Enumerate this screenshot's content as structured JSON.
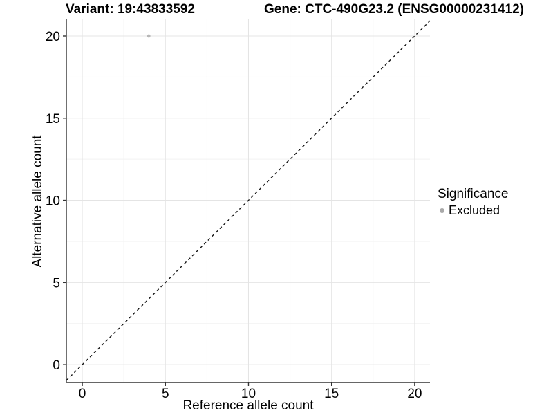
{
  "chart_data": {
    "type": "scatter",
    "title_left": "Variant: 19:43833592",
    "title_right": "Gene: CTC-490G23.2 (ENSG00000231412)",
    "xlabel": "Reference allele count",
    "ylabel": "Alternative allele count",
    "xlim": [
      -0.96,
      20.92
    ],
    "ylim": [
      -1.09,
      21.01
    ],
    "xticks": [
      0,
      5,
      10,
      15,
      20
    ],
    "yticks": [
      0,
      5,
      10,
      15,
      20
    ],
    "minor_xticks": [
      2.5,
      7.5,
      12.5,
      17.5
    ],
    "minor_yticks": [
      2.5,
      7.5,
      12.5,
      17.5
    ],
    "grid": true,
    "legend_position": "right",
    "series": [
      {
        "name": "Excluded",
        "color": "#b7b7b7",
        "points": [
          {
            "x": 4,
            "y": 20
          }
        ]
      }
    ],
    "reference_line": {
      "kind": "identity y=x",
      "style": "dashed",
      "color": "#141414"
    },
    "colors": {
      "axis": "#333333",
      "grid_major": "#e4e4e4",
      "grid_minor": "#f2f2f2",
      "background": "#ffffff",
      "point": "#b7b7b7"
    }
  },
  "legend": {
    "title": "Significance",
    "items": [
      {
        "label": "Excluded",
        "color": "#a9a9a9"
      }
    ]
  }
}
